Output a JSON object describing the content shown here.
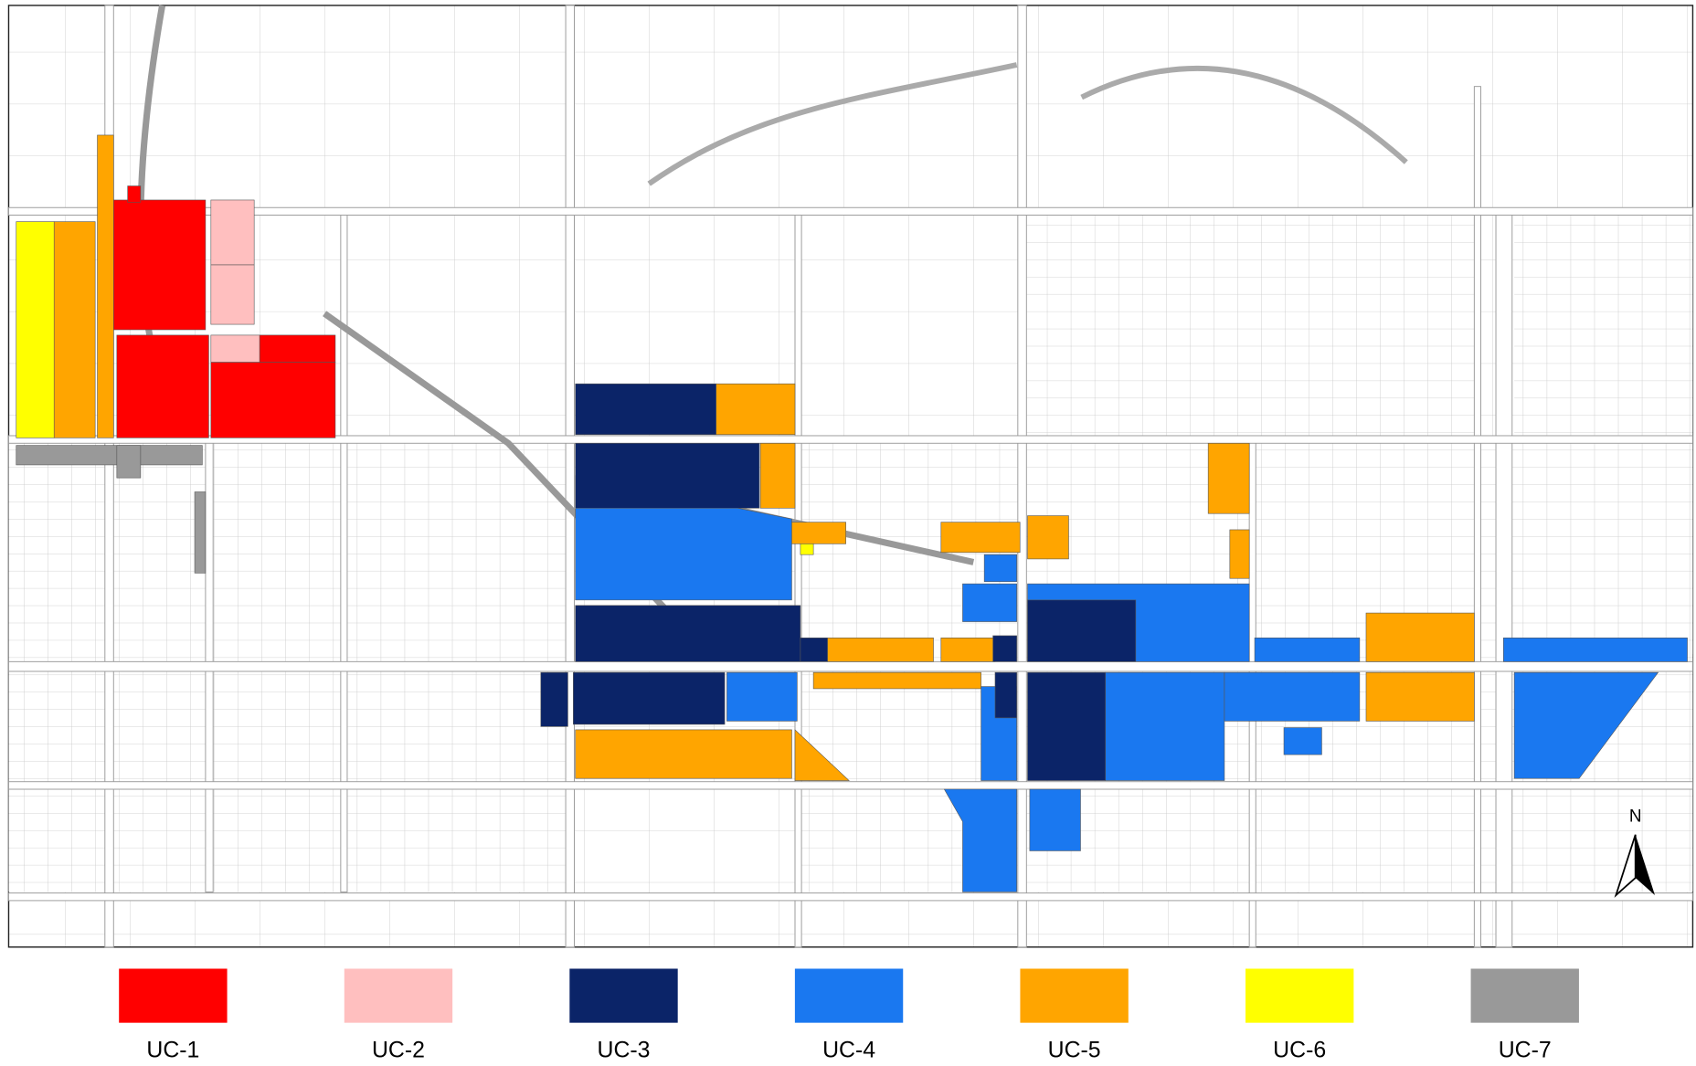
{
  "legend": {
    "items": [
      {
        "label": "UC-1",
        "color": "#ff0000"
      },
      {
        "label": "UC-2",
        "color": "#ffbfbf"
      },
      {
        "label": "UC-3",
        "color": "#0b2468"
      },
      {
        "label": "UC-4",
        "color": "#1a78f0"
      },
      {
        "label": "UC-5",
        "color": "#ffa500"
      },
      {
        "label": "UC-6",
        "color": "#ffff00"
      },
      {
        "label": "UC-7",
        "color": "#999999"
      }
    ]
  },
  "north_arrow": {
    "label": "N"
  }
}
